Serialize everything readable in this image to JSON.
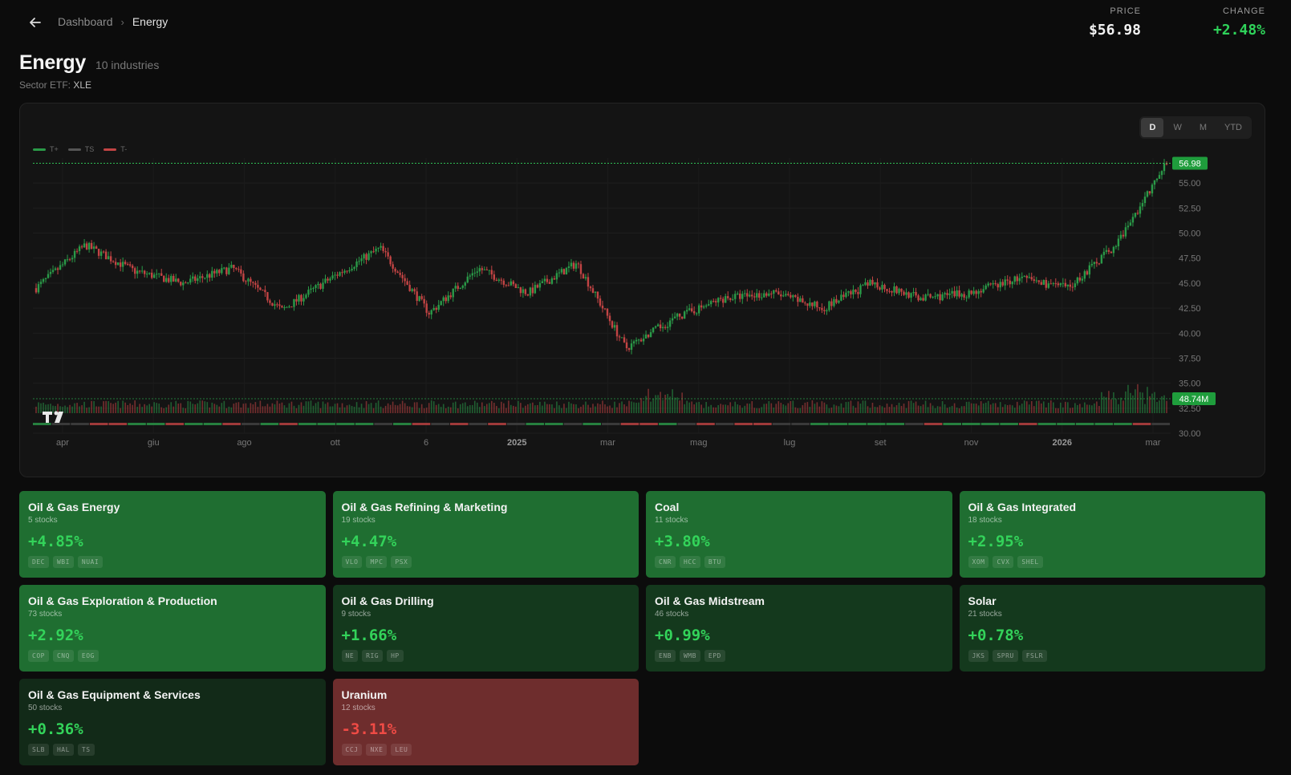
{
  "header": {
    "back_icon": "arrow-left-icon",
    "breadcrumb": {
      "root": "Dashboard",
      "separator": "›",
      "current": "Energy"
    },
    "price_label": "PRICE",
    "price_value": "$56.98",
    "change_label": "CHANGE",
    "change_value": "+2.48%"
  },
  "page": {
    "title": "Energy",
    "subtitle": "10 industries",
    "etf_label": "Sector ETF:",
    "etf_symbol": "XLE"
  },
  "chart_controls": {
    "timeframes": [
      "D",
      "W",
      "M",
      "YTD"
    ],
    "active": "D"
  },
  "chart_data": {
    "type": "candlestick",
    "legend": [
      {
        "label": "T+",
        "color": "#2a9a48"
      },
      {
        "label": "TS",
        "color": "#555555"
      },
      {
        "label": "T-",
        "color": "#c24444"
      }
    ],
    "y_ticks": [
      "55.00",
      "52.50",
      "50.00",
      "47.50",
      "45.00",
      "42.50",
      "40.00",
      "37.50",
      "35.00",
      "32.50",
      "30.00"
    ],
    "x_ticks": [
      "apr",
      "giu",
      "ago",
      "ott",
      "6",
      "2025",
      "mar",
      "mag",
      "lug",
      "set",
      "nov",
      "2026",
      "mar"
    ],
    "x_ticks_bold": [
      "2025",
      "2026"
    ],
    "ylim": [
      30,
      57.5
    ],
    "last_price": "56.98",
    "last_volume": "48.74M",
    "price_path": [
      {
        "x": "apr 2024",
        "y": 44.5
      },
      {
        "x": "mag 2024",
        "y": 48.8
      },
      {
        "x": "giu 2024",
        "y": 46.2
      },
      {
        "x": "lug 2024",
        "y": 45.0
      },
      {
        "x": "ago 2024",
        "y": 46.5
      },
      {
        "x": "set 2024",
        "y": 42.3
      },
      {
        "x": "ott 2024",
        "y": 45.5
      },
      {
        "x": "nov 2024",
        "y": 48.5
      },
      {
        "x": "dic 2024",
        "y": 42.0
      },
      {
        "x": "gen 2025",
        "y": 46.5
      },
      {
        "x": "feb 2025",
        "y": 44.0
      },
      {
        "x": "mar 2025",
        "y": 47.0
      },
      {
        "x": "apr 2025",
        "y": 38.5
      },
      {
        "x": "mag 2025",
        "y": 41.5
      },
      {
        "x": "giu 2025",
        "y": 43.5
      },
      {
        "x": "lug 2025",
        "y": 44.0
      },
      {
        "x": "ago 2025",
        "y": 42.5
      },
      {
        "x": "set 2025",
        "y": 45.0
      },
      {
        "x": "ott 2025",
        "y": 43.5
      },
      {
        "x": "nov 2025",
        "y": 44.0
      },
      {
        "x": "dic 2025",
        "y": 45.5
      },
      {
        "x": "gen 2026",
        "y": 44.5
      },
      {
        "x": "feb 2026",
        "y": 49.0
      },
      {
        "x": "mar 2026",
        "y": 56.98
      }
    ]
  },
  "industries": [
    {
      "name": "Oil & Gas Energy",
      "count": "5 stocks",
      "change": "+4.85%",
      "tickers": [
        "DEC",
        "WBI",
        "NUAI"
      ],
      "tone": "g1"
    },
    {
      "name": "Oil & Gas Refining & Marketing",
      "count": "19 stocks",
      "change": "+4.47%",
      "tickers": [
        "VLO",
        "MPC",
        "PSX"
      ],
      "tone": "g1"
    },
    {
      "name": "Coal",
      "count": "11 stocks",
      "change": "+3.80%",
      "tickers": [
        "CNR",
        "HCC",
        "BTU"
      ],
      "tone": "g1"
    },
    {
      "name": "Oil & Gas Integrated",
      "count": "18 stocks",
      "change": "+2.95%",
      "tickers": [
        "XOM",
        "CVX",
        "SHEL"
      ],
      "tone": "g1"
    },
    {
      "name": "Oil & Gas Exploration & Production",
      "count": "73 stocks",
      "change": "+2.92%",
      "tickers": [
        "COP",
        "CNQ",
        "EOG"
      ],
      "tone": "g1"
    },
    {
      "name": "Oil & Gas Drilling",
      "count": "9 stocks",
      "change": "+1.66%",
      "tickers": [
        "NE",
        "RIG",
        "HP"
      ],
      "tone": "g3"
    },
    {
      "name": "Oil & Gas Midstream",
      "count": "46 stocks",
      "change": "+0.99%",
      "tickers": [
        "ENB",
        "WMB",
        "EPD"
      ],
      "tone": "g3"
    },
    {
      "name": "Solar",
      "count": "21 stocks",
      "change": "+0.78%",
      "tickers": [
        "JKS",
        "SPRU",
        "FSLR"
      ],
      "tone": "g3"
    },
    {
      "name": "Oil & Gas Equipment & Services",
      "count": "50 stocks",
      "change": "+0.36%",
      "tickers": [
        "SLB",
        "HAL",
        "TS"
      ],
      "tone": "g4"
    },
    {
      "name": "Uranium",
      "count": "12 stocks",
      "change": "-3.11%",
      "tickers": [
        "CCJ",
        "NXE",
        "LEU"
      ],
      "tone": "r1"
    }
  ],
  "colors": {
    "up": "#2a9a48",
    "down": "#c24444",
    "positive_text": "#33d35a",
    "negative_text": "#f04b45",
    "price_badge": "#1f9d3c"
  }
}
